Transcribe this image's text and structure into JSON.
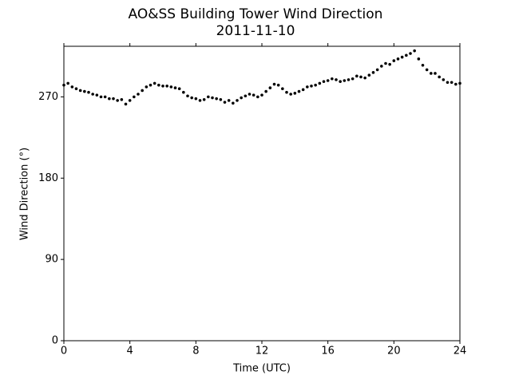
{
  "chart_data": {
    "type": "scatter",
    "title": "AO&SS Building Tower Wind Direction",
    "subtitle": "2011-11-10",
    "x_label": "Time (UTC)",
    "y_label": "Wind Direction (°)",
    "color": "#000000",
    "xlim": [
      0,
      24
    ],
    "xticks": [
      0,
      4,
      8,
      12,
      16,
      20,
      24
    ],
    "ylim": [
      0,
      326
    ],
    "yticks": [
      0,
      90,
      180,
      270
    ],
    "x": [
      0,
      0.25,
      0.5,
      0.75,
      1,
      1.25,
      1.5,
      1.75,
      2,
      2.25,
      2.5,
      2.75,
      3,
      3.25,
      3.5,
      3.75,
      4,
      4.25,
      4.5,
      4.75,
      5,
      5.25,
      5.5,
      5.75,
      6,
      6.25,
      6.5,
      6.75,
      7,
      7.25,
      7.5,
      7.75,
      8,
      8.25,
      8.5,
      8.75,
      9,
      9.25,
      9.5,
      9.75,
      10,
      10.25,
      10.5,
      10.75,
      11,
      11.25,
      11.5,
      11.75,
      12,
      12.25,
      12.5,
      12.75,
      13,
      13.25,
      13.5,
      13.75,
      14,
      14.25,
      14.5,
      14.75,
      15,
      15.25,
      15.5,
      15.75,
      16,
      16.25,
      16.5,
      16.75,
      17,
      17.25,
      17.5,
      17.75,
      18,
      18.25,
      18.5,
      18.75,
      19,
      19.25,
      19.5,
      19.75,
      20,
      20.25,
      20.5,
      20.75,
      21,
      21.25,
      21.5,
      21.75,
      22,
      22.25,
      22.5,
      22.75,
      23,
      23.25,
      23.5,
      23.75,
      24
    ],
    "values": [
      283,
      285,
      281,
      279,
      277,
      276,
      275,
      273,
      272,
      270,
      270,
      268,
      268,
      266,
      267,
      262,
      266,
      270,
      273,
      277,
      281,
      283,
      285,
      283,
      282,
      282,
      281,
      280,
      279,
      275,
      271,
      269,
      268,
      266,
      267,
      270,
      269,
      268,
      267,
      264,
      266,
      263,
      266,
      269,
      271,
      273,
      272,
      270,
      272,
      276,
      280,
      284,
      283,
      279,
      275,
      273,
      274,
      276,
      278,
      281,
      282,
      283,
      285,
      287,
      288,
      290,
      289,
      287,
      288,
      289,
      290,
      293,
      292,
      291,
      294,
      297,
      300,
      304,
      307,
      306,
      310,
      312,
      314,
      316,
      318,
      321,
      312,
      305,
      300,
      296,
      296,
      292,
      289,
      286,
      286,
      284,
      285
    ]
  }
}
